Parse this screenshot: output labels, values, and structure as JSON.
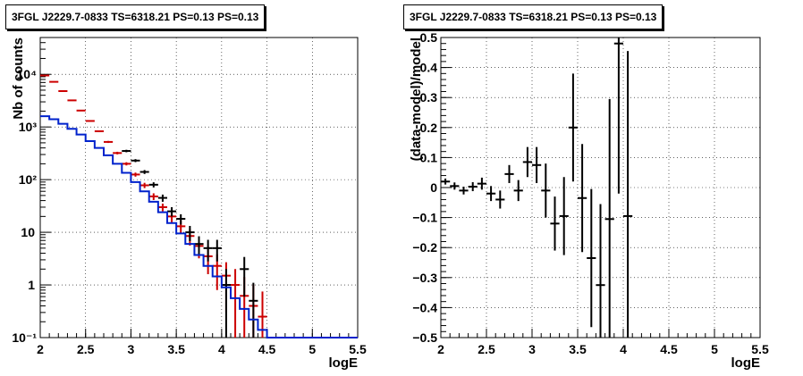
{
  "chart_data": [
    {
      "type": "line",
      "title": "3FGL J2229.7-0833 TS=6318.21 PS=0.13 PS=0.13",
      "xlabel": "logE",
      "ylabel": "Nb of counts",
      "xlim": [
        2,
        5.5
      ],
      "ylim": [
        0.1,
        50000
      ],
      "yscale": "log",
      "grid": true,
      "x_ticks": [
        "2",
        "2.5",
        "3",
        "3.5",
        "4",
        "4.5",
        "5",
        "5.5"
      ],
      "y_ticks": [
        "10⁻¹",
        "1",
        "10",
        "10²",
        "10³",
        "10⁴"
      ],
      "series": [
        {
          "color": "#cc0000",
          "style": "errorbar",
          "points": [
            {
              "x": 2.05,
              "y": 9500,
              "err": 100
            },
            {
              "x": 2.15,
              "y": 7200,
              "err": 90
            },
            {
              "x": 2.25,
              "y": 4800,
              "err": 70
            },
            {
              "x": 2.35,
              "y": 3200,
              "err": 55
            },
            {
              "x": 2.45,
              "y": 2050,
              "err": 45
            },
            {
              "x": 2.55,
              "y": 1300,
              "err": 36
            },
            {
              "x": 2.65,
              "y": 830,
              "err": 29
            },
            {
              "x": 2.75,
              "y": 520,
              "err": 23
            },
            {
              "x": 2.85,
              "y": 320,
              "err": 18
            },
            {
              "x": 2.95,
              "y": 200,
              "err": 14
            },
            {
              "x": 3.05,
              "y": 125,
              "err": 11
            },
            {
              "x": 3.15,
              "y": 78,
              "err": 9
            },
            {
              "x": 3.25,
              "y": 48,
              "err": 7
            },
            {
              "x": 3.35,
              "y": 30,
              "err": 5
            },
            {
              "x": 3.45,
              "y": 20,
              "err": 4.5
            },
            {
              "x": 3.55,
              "y": 13,
              "err": 3.6
            },
            {
              "x": 3.65,
              "y": 8.5,
              "err": 2.9
            },
            {
              "x": 3.75,
              "y": 5.5,
              "err": 2.3
            },
            {
              "x": 3.85,
              "y": 3.5,
              "err": 1.9
            },
            {
              "x": 3.95,
              "y": 2.3,
              "err": 1.5
            },
            {
              "x": 4.05,
              "y": 1.5,
              "err": 1.2
            },
            {
              "x": 4.15,
              "y": 1.0,
              "err": 1.0
            },
            {
              "x": 4.25,
              "y": 0.62,
              "err": 0.8
            },
            {
              "x": 4.35,
              "y": 0.4,
              "err": 0.63
            },
            {
              "x": 4.45,
              "y": 0.25,
              "err": 0.5
            }
          ]
        },
        {
          "color": "#000000",
          "style": "errorbar",
          "points": [
            {
              "x": 2.95,
              "y": 350,
              "err": 19
            },
            {
              "x": 3.05,
              "y": 230,
              "err": 15
            },
            {
              "x": 3.15,
              "y": 140,
              "err": 12
            },
            {
              "x": 3.25,
              "y": 80,
              "err": 9
            },
            {
              "x": 3.35,
              "y": 45,
              "err": 7
            },
            {
              "x": 3.45,
              "y": 25,
              "err": 5
            },
            {
              "x": 3.55,
              "y": 18,
              "err": 4
            },
            {
              "x": 3.65,
              "y": 10,
              "err": 3.2
            },
            {
              "x": 3.75,
              "y": 6,
              "err": 2.4
            },
            {
              "x": 3.85,
              "y": 5,
              "err": 2.2
            },
            {
              "x": 3.95,
              "y": 5,
              "err": 2.2
            },
            {
              "x": 4.05,
              "y": 1,
              "err": 1.0
            },
            {
              "x": 4.25,
              "y": 2,
              "err": 1.4
            },
            {
              "x": 4.35,
              "y": 0.5,
              "err": 0.6
            }
          ]
        },
        {
          "color": "#0022cc",
          "style": "step",
          "edges": [
            2.0,
            2.1,
            2.2,
            2.3,
            2.4,
            2.5,
            2.6,
            2.7,
            2.8,
            2.9,
            3.0,
            3.1,
            3.2,
            3.3,
            3.4,
            3.5,
            3.6,
            3.7,
            3.8,
            3.9,
            4.0,
            4.1,
            4.2,
            4.3,
            4.4,
            4.5,
            4.6
          ],
          "values": [
            1600,
            1400,
            1150,
            920,
            720,
            540,
            400,
            290,
            200,
            135,
            90,
            60,
            38,
            24,
            15,
            9.5,
            6,
            3.7,
            2.3,
            1.45,
            0.9,
            0.56,
            0.35,
            0.22,
            0.14,
            0.1
          ],
          "tail": [
            4.6,
            5.5,
            0.1
          ]
        }
      ]
    },
    {
      "type": "scatter",
      "title": "3FGL J2229.7-0833 TS=6318.21 PS=0.13 PS=0.13",
      "xlabel": "logE",
      "ylabel": "(data-model)/model",
      "xlim": [
        2,
        5.5
      ],
      "ylim": [
        -0.5,
        0.5
      ],
      "grid": true,
      "x_ticks": [
        "2",
        "2.5",
        "3",
        "3.5",
        "4",
        "4.5",
        "5",
        "5.5"
      ],
      "y_ticks": [
        "−0.5",
        "−0.4",
        "−0.3",
        "−0.2",
        "−0.1",
        "0",
        "0.1",
        "0.2",
        "0.3",
        "0.4",
        "0.5"
      ],
      "series": [
        {
          "color": "#000000",
          "style": "errorbar",
          "points": [
            {
              "x": 2.05,
              "y": 0.02,
              "err": 0.01
            },
            {
              "x": 2.15,
              "y": 0.005,
              "err": 0.012
            },
            {
              "x": 2.25,
              "y": -0.01,
              "err": 0.013
            },
            {
              "x": 2.35,
              "y": 0.003,
              "err": 0.015
            },
            {
              "x": 2.45,
              "y": 0.013,
              "err": 0.02
            },
            {
              "x": 2.55,
              "y": -0.02,
              "err": 0.025
            },
            {
              "x": 2.65,
              "y": -0.04,
              "err": 0.03
            },
            {
              "x": 2.75,
              "y": 0.045,
              "err": 0.03
            },
            {
              "x": 2.85,
              "y": -0.01,
              "err": 0.035
            },
            {
              "x": 2.95,
              "y": 0.085,
              "err": 0.05
            },
            {
              "x": 3.05,
              "y": 0.075,
              "err": 0.06
            },
            {
              "x": 3.15,
              "y": -0.01,
              "err": 0.09
            },
            {
              "x": 3.25,
              "y": -0.12,
              "err": 0.09
            },
            {
              "x": 3.35,
              "y": -0.095,
              "err": 0.13
            },
            {
              "x": 3.45,
              "y": 0.2,
              "err": 0.18
            },
            {
              "x": 3.55,
              "y": -0.035,
              "err": 0.18
            },
            {
              "x": 3.65,
              "y": -0.235,
              "err": 0.23
            },
            {
              "x": 3.75,
              "y": -0.325,
              "err": 0.27
            },
            {
              "x": 3.85,
              "y": -0.105,
              "err": 0.4
            },
            {
              "x": 3.95,
              "y": 0.48,
              "err": 0.5
            },
            {
              "x": 4.05,
              "y": -0.095,
              "err": 0.55
            }
          ]
        }
      ]
    }
  ]
}
